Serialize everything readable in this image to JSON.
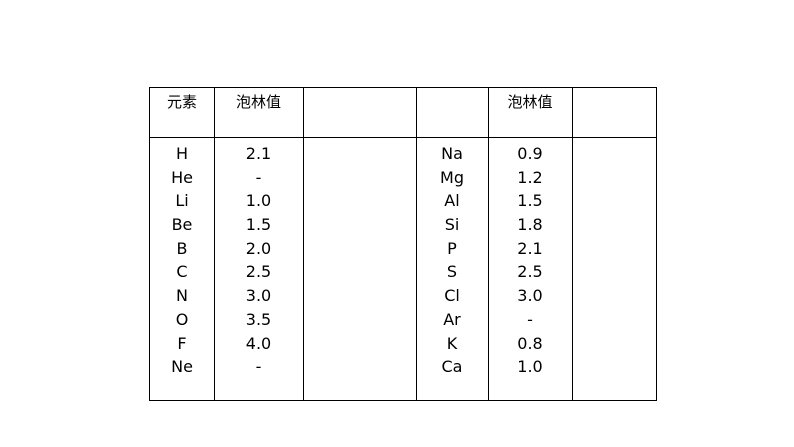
{
  "table": {
    "headers": {
      "element_left": "元素",
      "value_left": "泡林值",
      "blank_left": "",
      "element_right": "",
      "value_right": "泡林值",
      "blank_right": ""
    },
    "left_elements": [
      "H",
      "He",
      "Li",
      "Be",
      "B",
      "C",
      "N",
      "O",
      "F",
      "Ne"
    ],
    "left_values": [
      "2.1",
      "-",
      "1.0",
      "1.5",
      "2.0",
      "2.5",
      "3.0",
      "3.5",
      "4.0",
      "-"
    ],
    "right_elements": [
      "Na",
      "Mg",
      "Al",
      "Si",
      "P",
      "S",
      "Cl",
      "Ar",
      "K",
      "Ca"
    ],
    "right_values": [
      "0.9",
      "1.2",
      "1.5",
      "1.8",
      "2.1",
      "2.5",
      "3.0",
      "-",
      "0.8",
      "1.0"
    ]
  }
}
